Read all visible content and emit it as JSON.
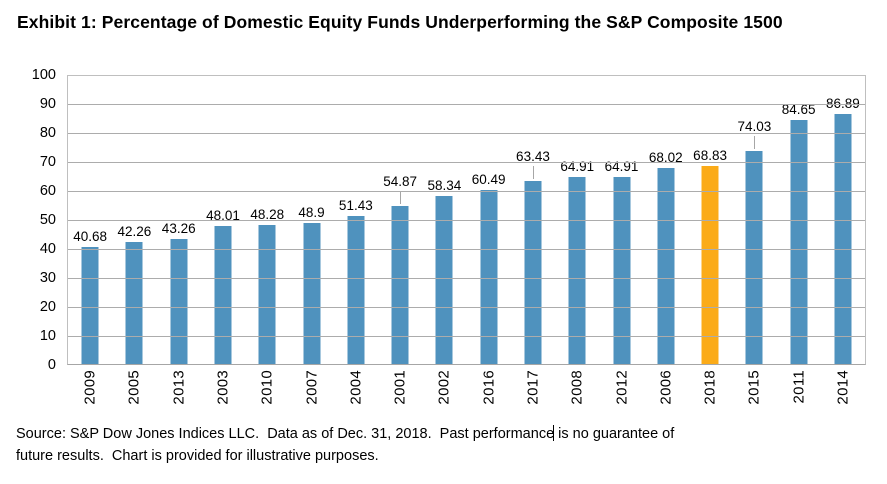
{
  "page": {
    "background": "#FFFFFF"
  },
  "chart_data": {
    "type": "bar",
    "title": "Exhibit 1: Percentage of Domestic Equity Funds Underperforming the S&P Composite 1500",
    "categories": [
      "2009",
      "2005",
      "2013",
      "2003",
      "2010",
      "2007",
      "2004",
      "2001",
      "2002",
      "2016",
      "2017",
      "2008",
      "2012",
      "2006",
      "2018",
      "2015",
      "2011",
      "2014"
    ],
    "values": [
      40.68,
      42.26,
      43.26,
      48.01,
      48.28,
      48.9,
      51.43,
      54.87,
      58.34,
      60.49,
      63.43,
      64.91,
      64.91,
      68.02,
      68.83,
      74.03,
      84.65,
      86.89
    ],
    "data_labels": [
      "40.68",
      "42.26",
      "43.26",
      "48.01",
      "48.28",
      "48.9",
      "51.43",
      "54.87",
      "58.34",
      "60.49",
      "63.43",
      "64.91",
      "64.91",
      "68.02",
      "68.83",
      "74.03",
      "84.65",
      "86.89"
    ],
    "highlight_category": "2018",
    "label_leader_categories": [
      "2001",
      "2017",
      "2015"
    ],
    "ylim": [
      0,
      100
    ],
    "y_ticks": [
      "100",
      "90",
      "80",
      "70",
      "60",
      "50",
      "40",
      "30",
      "20",
      "10",
      "0"
    ],
    "grid": true,
    "legend": "none",
    "xlabel": "",
    "ylabel": "",
    "colors": {
      "bar": "#4F92BE",
      "highlight": "#FBAB18",
      "gridline": "#ACACAC",
      "plot_border": "#BFBFBF",
      "axis_line": "#A6A6A6",
      "text": "#000000"
    }
  },
  "source": {
    "line1_before_caret": "Source: S&P Dow Jones Indices LLC.  Data as of Dec. 31, 2018.  Past performance",
    "line1_after_caret": " is no guarantee of",
    "line2": "future results.  Chart is provided for illustrative purposes."
  }
}
